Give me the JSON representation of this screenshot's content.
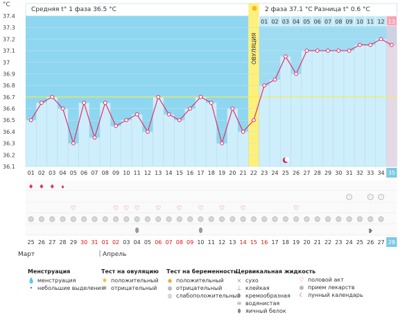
{
  "chart_data": {
    "type": "line",
    "unit_label": "°C",
    "header": {
      "phase1": "Средняя t° 1 фаза 36.5 °C",
      "phase2": "2 фаза 37.1 °C",
      "diff": "Разница t° 0.6 °C"
    },
    "ovulation_label": "ОВУЛЯЦИЯ",
    "ovulation_day": 22,
    "coverline": 36.7,
    "ylim": [
      36.1,
      37.4
    ],
    "yticks": [
      "36.1",
      "36.2",
      "36.3",
      "36.4",
      "36.5",
      "36.6",
      "36.7",
      "36.8",
      "36.9",
      "37",
      "37.1",
      "37.2",
      "37.3",
      "37.4"
    ],
    "x": [
      "01",
      "02",
      "03",
      "04",
      "05",
      "06",
      "07",
      "08",
      "09",
      "10",
      "11",
      "12",
      "13",
      "14",
      "15",
      "16",
      "17",
      "18",
      "19",
      "20",
      "21",
      "22",
      "23",
      "24",
      "25",
      "26",
      "27",
      "28",
      "29",
      "30",
      "31",
      "32",
      "33",
      "34",
      "35"
    ],
    "values": [
      36.5,
      36.65,
      36.7,
      36.6,
      36.3,
      36.65,
      36.35,
      36.65,
      36.45,
      36.5,
      36.55,
      36.4,
      36.7,
      36.55,
      36.5,
      36.6,
      36.7,
      36.65,
      36.3,
      36.6,
      36.4,
      36.5,
      36.8,
      36.85,
      37.05,
      36.9,
      37.1,
      37.1,
      37.1,
      37.1,
      37.1,
      37.15,
      37.15,
      37.2,
      37.15
    ],
    "top_days": [
      "01",
      "02",
      "03",
      "04",
      "05",
      "06",
      "07",
      "08",
      "09",
      "10",
      "11",
      "12",
      "13"
    ],
    "menstruation_heavy_days": [
      1,
      2,
      3
    ],
    "menstruation_light_days": [
      4
    ],
    "moon_day": 25,
    "intercourse_days": [
      5,
      9,
      10,
      11,
      13,
      15,
      17,
      19,
      21,
      26
    ],
    "pills_days": [
      1,
      2,
      3,
      4,
      5,
      6,
      7,
      8,
      9,
      10,
      11,
      12,
      13,
      14,
      15,
      16,
      17,
      18,
      19,
      20,
      21,
      22,
      23,
      24,
      25,
      26,
      27,
      28,
      29,
      30,
      31,
      32,
      33,
      34
    ],
    "negative_ovulation_test_days": [
      31,
      33,
      34
    ],
    "egg_white_days": [
      11,
      17
    ],
    "creamy_days": [
      33
    ],
    "calendar_dates": [
      "25",
      "26",
      "27",
      "28",
      "29",
      "30",
      "31",
      "01",
      "02",
      "03",
      "04",
      "05",
      "06",
      "07",
      "08",
      "09",
      "10",
      "11",
      "12",
      "13",
      "14",
      "15",
      "16",
      "17",
      "18",
      "19",
      "20",
      "21",
      "22",
      "23",
      "24",
      "25",
      "26",
      "27",
      "28"
    ],
    "red_date_indices": [
      5,
      6,
      7,
      8,
      12,
      13,
      14,
      15,
      20,
      21,
      22
    ],
    "month1": "Март",
    "month2": "Апрель"
  },
  "legend": {
    "menstruation": {
      "title": "Менструация",
      "items": [
        "менструация",
        "небольшие выделения"
      ]
    },
    "ovulation_test": {
      "title": "Тест на овуляцию",
      "items": [
        "положительный",
        "отрицательный"
      ]
    },
    "pregnancy_test": {
      "title": "Тест на беременность",
      "items": [
        "положительный",
        "отрицательный",
        "слабоположительный"
      ]
    },
    "cervical_fluid": {
      "title": "Цервикальная жидкость",
      "items": [
        "сухо",
        "клейкая",
        "кремообразная",
        "водянистая",
        "яичный белок"
      ]
    },
    "other": {
      "items": [
        "половой акт",
        "прием лекарств",
        "лунный календарь"
      ]
    }
  },
  "colors": {
    "phase1_bg": "#8fd6f0",
    "bar": "#cfeefb",
    "ovulation": "#fff07a",
    "line": "#e0306a",
    "coverline": "#f0f060",
    "top_cell": "#bfe6f5",
    "last_cell": "#f6a3b8",
    "red_text": "#e01010"
  }
}
